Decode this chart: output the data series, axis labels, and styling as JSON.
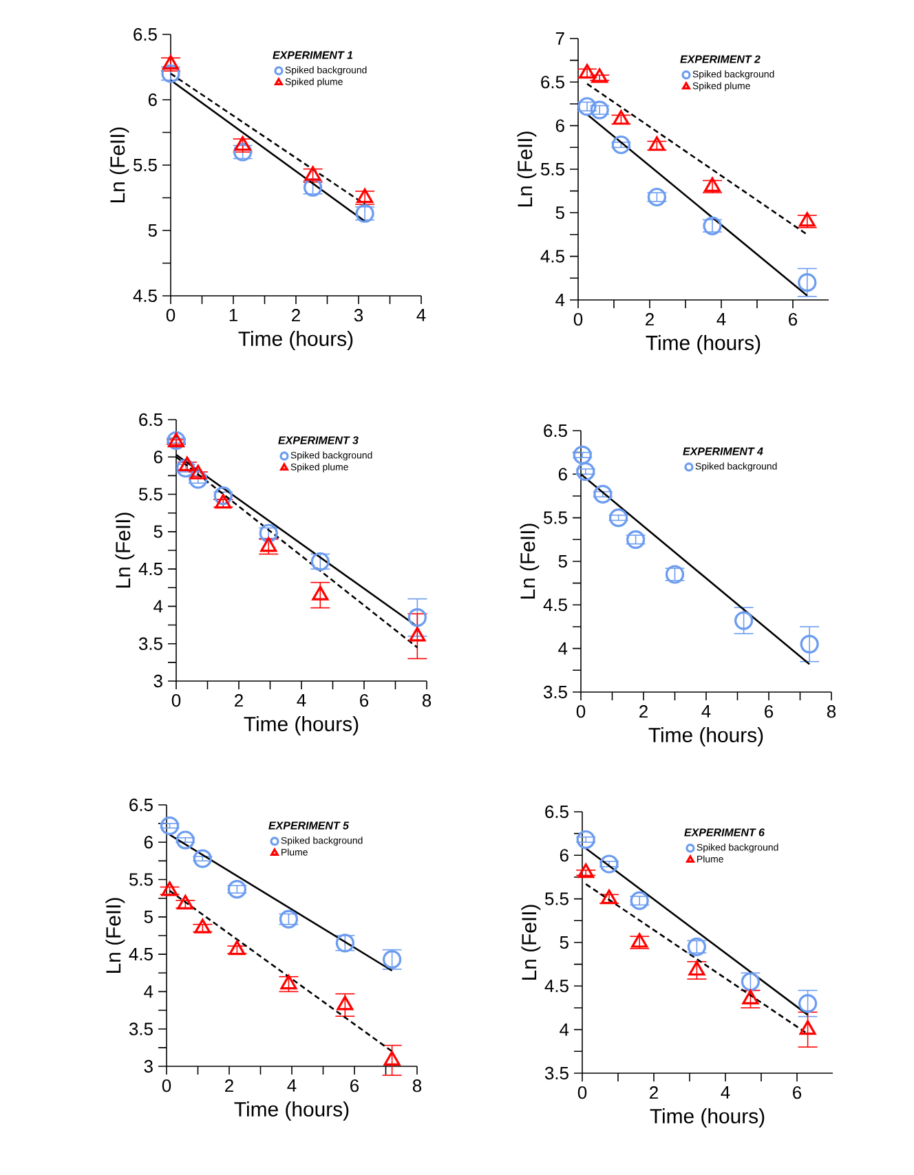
{
  "chart_data": [
    {
      "type": "scatter",
      "legend_title": "EXPERIMENT 1",
      "xlabel": "Time (hours)",
      "ylabel": "Ln (FeII)",
      "xlim": [
        0,
        4
      ],
      "ylim": [
        4.5,
        6.5
      ],
      "xticks": [
        0,
        1,
        2,
        3,
        4
      ],
      "yticks": [
        4.5,
        5,
        5.5,
        6,
        6.5
      ],
      "legend": "top right",
      "grid": false,
      "series": [
        {
          "name": "Spiked background",
          "color": "#6c9cf0",
          "marker": "circle",
          "x": [
            0,
            1.15,
            2.27,
            3.1
          ],
          "values": [
            6.2,
            5.6,
            5.33,
            5.13
          ],
          "errors": [
            0.05,
            0.05,
            0.05,
            0.05
          ]
        },
        {
          "name": "Spiked plume",
          "color": "#ff0000",
          "marker": "triangle",
          "x": [
            0,
            1.15,
            2.27,
            3.1
          ],
          "values": [
            6.27,
            5.65,
            5.42,
            5.25
          ],
          "errors": [
            0.05,
            0.05,
            0.05,
            0.05
          ]
        },
        {
          "type": "line",
          "color": "#000000",
          "line_style": "solid",
          "x": [
            0,
            3.1
          ],
          "values": [
            6.15,
            5.07
          ]
        },
        {
          "type": "line",
          "color": "#000000",
          "line_style": "dashed",
          "x": [
            0,
            3.1
          ],
          "values": [
            6.2,
            5.2
          ]
        }
      ]
    },
    {
      "type": "scatter",
      "legend_title": "EXPERIMENT 2",
      "xlabel": "Time (hours)",
      "ylabel": "Ln (FeII)",
      "xlim": [
        0,
        7
      ],
      "ylim": [
        4,
        7
      ],
      "xticks": [
        0,
        2,
        4,
        6
      ],
      "yticks": [
        4,
        4.5,
        5,
        5.5,
        6,
        6.5,
        7
      ],
      "legend": "top right",
      "grid": false,
      "series": [
        {
          "name": "Spiked background",
          "color": "#6c9cf0",
          "marker": "circle",
          "x": [
            0.25,
            0.6,
            1.2,
            2.2,
            3.75,
            6.4
          ],
          "values": [
            6.22,
            6.18,
            5.78,
            5.18,
            4.85,
            4.2
          ],
          "errors": [
            0.05,
            0.05,
            0.03,
            0.05,
            0.07,
            0.16
          ]
        },
        {
          "name": "Spiked plume",
          "color": "#ff0000",
          "marker": "triangle",
          "x": [
            0.25,
            0.6,
            1.2,
            2.2,
            3.75,
            6.4
          ],
          "values": [
            6.6,
            6.55,
            6.07,
            5.77,
            5.3,
            4.9
          ],
          "errors": [
            0.05,
            0.03,
            0.05,
            0.05,
            0.07,
            0.07
          ]
        },
        {
          "type": "line",
          "color": "#000000",
          "line_style": "solid",
          "x": [
            0.25,
            6.4
          ],
          "values": [
            6.13,
            4.05
          ]
        },
        {
          "type": "line",
          "color": "#000000",
          "line_style": "dashed",
          "x": [
            0.25,
            6.4
          ],
          "values": [
            6.48,
            4.75
          ]
        }
      ]
    },
    {
      "type": "scatter",
      "legend_title": "EXPERIMENT 3",
      "xlabel": "Time (hours)",
      "ylabel": "Ln (FeII)",
      "xlim": [
        0,
        8
      ],
      "ylim": [
        3,
        6.5
      ],
      "xticks": [
        0,
        2,
        4,
        6,
        8
      ],
      "yticks": [
        3,
        3.5,
        4,
        4.5,
        5,
        5.5,
        6,
        6.5
      ],
      "legend": "top right",
      "grid": false,
      "series": [
        {
          "name": "Spiked background",
          "color": "#6c9cf0",
          "marker": "circle",
          "x": [
            0,
            0.3,
            0.7,
            1.5,
            2.95,
            4.6,
            7.7
          ],
          "values": [
            6.22,
            5.85,
            5.7,
            5.48,
            4.98,
            4.6,
            3.85
          ],
          "errors": [
            0.03,
            0.05,
            0.05,
            0.05,
            0.07,
            0.1,
            0.25
          ]
        },
        {
          "name": "Spiked plume",
          "color": "#ff0000",
          "marker": "triangle",
          "x": [
            0,
            0.35,
            0.7,
            1.5,
            2.95,
            4.6,
            7.7
          ],
          "values": [
            6.2,
            5.88,
            5.77,
            5.38,
            4.8,
            4.15,
            3.6
          ],
          "errors": [
            0.03,
            0.05,
            0.03,
            0.05,
            0.1,
            0.17,
            0.3
          ]
        },
        {
          "type": "line",
          "color": "#000000",
          "line_style": "solid",
          "x": [
            0,
            7.7
          ],
          "values": [
            6.03,
            3.73
          ]
        },
        {
          "type": "line",
          "color": "#000000",
          "line_style": "dashed",
          "x": [
            0,
            7.7
          ],
          "values": [
            6.0,
            3.45
          ]
        }
      ]
    },
    {
      "type": "scatter",
      "legend_title": "EXPERIMENT 4",
      "xlabel": "Time (hours)",
      "ylabel": "Ln (FeII)",
      "xlim": [
        0,
        8
      ],
      "ylim": [
        3.5,
        6.5
      ],
      "xticks": [
        0,
        2,
        4,
        6,
        8
      ],
      "yticks": [
        3.5,
        4,
        4.5,
        5,
        5.5,
        6,
        6.5
      ],
      "legend": "top right",
      "grid": false,
      "series": [
        {
          "name": "Spiked background",
          "color": "#6c9cf0",
          "marker": "circle",
          "x": [
            0.05,
            0.15,
            0.7,
            1.2,
            1.75,
            3.0,
            5.2,
            7.3
          ],
          "values": [
            6.22,
            6.03,
            5.77,
            5.5,
            5.25,
            4.85,
            4.32,
            4.05
          ],
          "errors": [
            0.03,
            0.03,
            0.03,
            0.03,
            0.05,
            0.07,
            0.15,
            0.2
          ]
        },
        {
          "type": "line",
          "color": "#000000",
          "line_style": "solid",
          "x": [
            0,
            7.3
          ],
          "values": [
            6.0,
            3.82
          ]
        }
      ]
    },
    {
      "type": "scatter",
      "legend_title": "EXPERIMENT 5",
      "xlabel": "Time (hours)",
      "ylabel": "Ln (FeII)",
      "xlim": [
        0,
        8
      ],
      "ylim": [
        3,
        6.5
      ],
      "xticks": [
        0,
        2,
        4,
        6,
        8
      ],
      "yticks": [
        3,
        3.5,
        4,
        4.5,
        5,
        5.5,
        6,
        6.5
      ],
      "legend": "top right",
      "grid": false,
      "series": [
        {
          "name": "Spiked background",
          "color": "#6c9cf0",
          "marker": "circle",
          "x": [
            0.1,
            0.6,
            1.15,
            2.25,
            3.9,
            5.7,
            7.2
          ],
          "values": [
            6.22,
            6.03,
            5.78,
            5.37,
            4.97,
            4.65,
            4.43
          ],
          "errors": [
            0.03,
            0.03,
            0.03,
            0.05,
            0.07,
            0.1,
            0.13
          ]
        },
        {
          "name": "Plume",
          "color": "#ff0000",
          "marker": "triangle",
          "x": [
            0.1,
            0.6,
            1.15,
            2.25,
            3.9,
            5.7,
            7.2
          ],
          "values": [
            5.35,
            5.17,
            4.85,
            4.56,
            4.1,
            3.82,
            3.08
          ],
          "errors": [
            0.05,
            0.05,
            0.05,
            0.05,
            0.1,
            0.15,
            0.2
          ]
        },
        {
          "type": "line",
          "color": "#000000",
          "line_style": "solid",
          "x": [
            0.1,
            7.2
          ],
          "values": [
            6.1,
            4.28
          ]
        },
        {
          "type": "line",
          "color": "#000000",
          "line_style": "dashed",
          "x": [
            0.1,
            7.2
          ],
          "values": [
            5.35,
            3.2
          ]
        }
      ]
    },
    {
      "type": "scatter",
      "legend_title": "EXPERIMENT 6",
      "xlabel": "Time (hours)",
      "ylabel": "Ln (FeII)",
      "xlim": [
        0,
        7
      ],
      "ylim": [
        3.5,
        6.5
      ],
      "xticks": [
        0,
        2,
        4,
        6
      ],
      "yticks": [
        3.5,
        4,
        4.5,
        5,
        5.5,
        6,
        6.5
      ],
      "legend": "top right",
      "grid": false,
      "series": [
        {
          "name": "Spiked background",
          "color": "#6c9cf0",
          "marker": "circle",
          "x": [
            0.1,
            0.75,
            1.6,
            3.2,
            4.7,
            6.3
          ],
          "values": [
            6.18,
            5.9,
            5.48,
            4.95,
            4.55,
            4.3
          ],
          "errors": [
            0.03,
            0.03,
            0.05,
            0.07,
            0.1,
            0.15
          ]
        },
        {
          "name": "Plume",
          "color": "#ff0000",
          "marker": "triangle",
          "x": [
            0.1,
            0.75,
            1.6,
            3.2,
            4.7,
            6.3
          ],
          "values": [
            5.8,
            5.5,
            5.0,
            4.68,
            4.35,
            4.0
          ],
          "errors": [
            0.03,
            0.05,
            0.07,
            0.1,
            0.1,
            0.2
          ]
        },
        {
          "type": "line",
          "color": "#000000",
          "line_style": "solid",
          "x": [
            0.1,
            6.3
          ],
          "values": [
            6.08,
            4.17
          ]
        },
        {
          "type": "line",
          "color": "#000000",
          "line_style": "dashed",
          "x": [
            0.1,
            6.3
          ],
          "values": [
            5.67,
            3.95
          ]
        }
      ]
    }
  ]
}
